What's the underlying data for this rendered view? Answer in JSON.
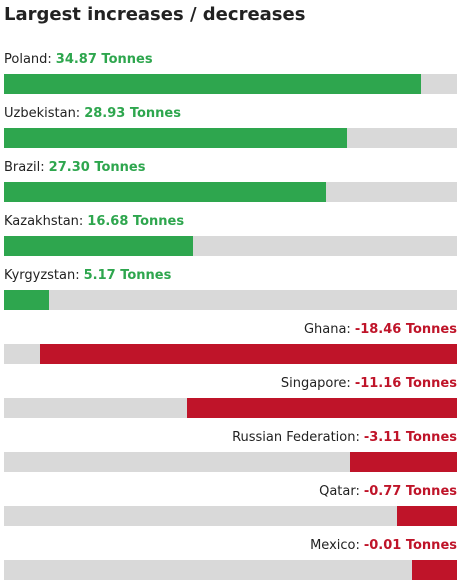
{
  "chart_data": {
    "type": "bar",
    "title": "Largest increases / decreases",
    "categories": [
      "Poland:",
      "Uzbekistan:",
      "Brazil:",
      "Kazakhstan:",
      "Kyrgyzstan:",
      "Ghana:",
      "Singapore:",
      "Russian Federation:",
      "Qatar:",
      "Mexico:"
    ],
    "values": [
      34.87,
      28.93,
      27.3,
      16.68,
      5.17,
      -18.46,
      -11.16,
      -3.11,
      -0.77,
      -0.01
    ],
    "value_labels": [
      "34.87 Tonnes",
      "28.93 Tonnes",
      "27.30 Tonnes",
      "16.68 Tonnes",
      "5.17 Tonnes",
      "-18.46 Tonnes",
      "-11.16 Tonnes",
      "-3.11 Tonnes",
      "-0.77 Tonnes",
      "-0.01 Tonnes"
    ],
    "increase_color": "#2ea64e",
    "decrease_color": "#bf1429",
    "track_color": "#d9d9d9"
  }
}
